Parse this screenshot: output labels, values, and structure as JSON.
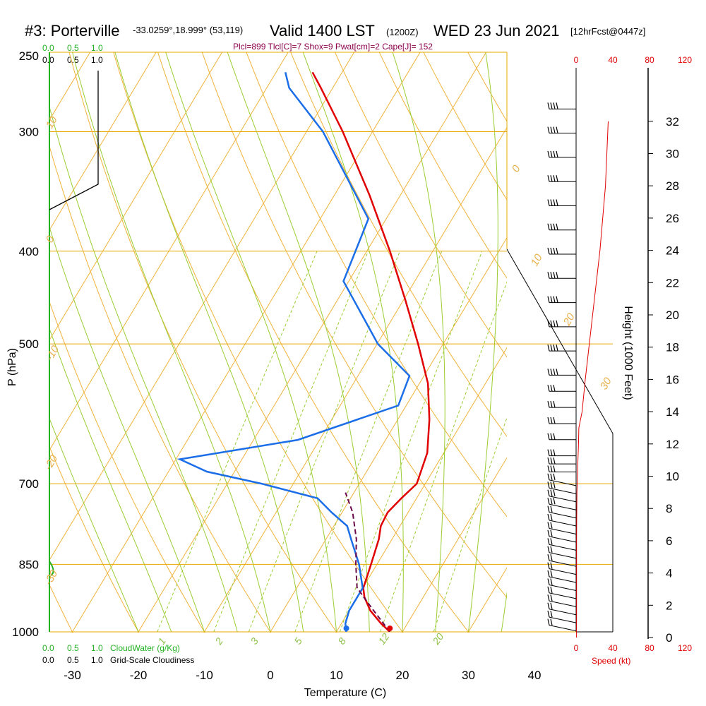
{
  "header": {
    "station": "#3: Porterville",
    "coords": "-33.0259°,18.999° (53,119)",
    "valid_prefix": "Valid 1400 LST",
    "valid_utc": "(1200Z)",
    "valid_date": "WED 23 Jun 2021",
    "forecast": "[12hrFcst@0447z]"
  },
  "params_line": "Plcl=899 Tlcl[C]=7 Shox=9 Pwat[cm]=2 Cape[J]= 152",
  "top_scales": {
    "green": [
      "0.0",
      "0.5",
      "1.0"
    ],
    "black": [
      "0.0",
      "0.5",
      "1.0"
    ]
  },
  "bottom_scales": {
    "cloud_ticks": [
      "0.0",
      "0.5",
      "1.0"
    ],
    "cloud_label": "CloudWater (g/Kg)",
    "grid_ticks": [
      "0.0",
      "0.5",
      "1.0"
    ],
    "grid_label": "Grid-Scale Cloudiness"
  },
  "speed_axis": {
    "top_ticks": [
      "0",
      "40",
      "80",
      "120"
    ],
    "bottom_ticks": [
      "0",
      "40",
      "80",
      "120"
    ],
    "label": "Speed (kt)"
  },
  "chart_data": {
    "type": "line",
    "title": "#3: Porterville -33.0259°,18.999° (53,119) Valid 1400 LST (1200Z) WED 23 Jun 2021 [12hrFcst@0447z]",
    "xlabel": "Temperature (C)",
    "ylabel": "P (hPa)",
    "y2label": "Height (1000 Feet)",
    "x_ticks": [
      "-30",
      "-20",
      "-10",
      "0",
      "10",
      "20",
      "30",
      "40"
    ],
    "y_ticks": [
      "250",
      "300",
      "400",
      "500",
      "700",
      "850",
      "1000"
    ],
    "y2_ticks": [
      "0",
      "2",
      "4",
      "6",
      "8",
      "10",
      "12",
      "14",
      "16",
      "18",
      "20",
      "22",
      "24",
      "26",
      "28",
      "30",
      "32"
    ],
    "xlim": [
      -35,
      36
    ],
    "ylim": [
      1000,
      250
    ],
    "y_scale": "log",
    "skew_degC_per_decade_lnp": 33.8,
    "isotherm_labels": [
      "10",
      "0",
      "-10",
      "-20",
      "-30",
      "0",
      "10",
      "20",
      "30"
    ],
    "mixing_ratio_labels": [
      "1",
      "2",
      "3",
      "5",
      "8",
      "12",
      "20"
    ],
    "series": [
      {
        "role": "temperature",
        "color": "#e00000",
        "points": [
          [
            1000,
            18.1
          ],
          [
            980,
            16.0
          ],
          [
            950,
            13.2
          ],
          [
            920,
            11.1
          ],
          [
            900,
            10.1
          ],
          [
            850,
            9.1
          ],
          [
            800,
            8.0
          ],
          [
            775,
            7.1
          ],
          [
            750,
            6.9
          ],
          [
            725,
            7.7
          ],
          [
            700,
            8.7
          ],
          [
            650,
            7.5
          ],
          [
            600,
            4.8
          ],
          [
            550,
            1.3
          ],
          [
            500,
            -3.8
          ],
          [
            450,
            -9.7
          ],
          [
            400,
            -16.5
          ],
          [
            350,
            -24.6
          ],
          [
            300,
            -34.5
          ],
          [
            270,
            -41.8
          ],
          [
            260,
            -44.5
          ]
        ]
      },
      {
        "role": "dewpoint",
        "color": "#1c6ee8",
        "points": [
          [
            1000,
            11.5
          ],
          [
            980,
            10.6
          ],
          [
            950,
            10.0
          ],
          [
            900,
            10.0
          ],
          [
            850,
            7.3
          ],
          [
            800,
            3.8
          ],
          [
            775,
            2.0
          ],
          [
            750,
            -1.6
          ],
          [
            725,
            -5.0
          ],
          [
            700,
            -14.8
          ],
          [
            680,
            -24.2
          ],
          [
            660,
            -29.4
          ],
          [
            630,
            -13.3
          ],
          [
            580,
            -1.2
          ],
          [
            540,
            -2.2
          ],
          [
            500,
            -9.9
          ],
          [
            430,
            -20.8
          ],
          [
            370,
            -22.7
          ],
          [
            300,
            -37.5
          ],
          [
            270,
            -46.6
          ],
          [
            260,
            -48.6
          ]
        ]
      },
      {
        "role": "parcel",
        "color": "#6b0a4a",
        "dashed": true,
        "points": [
          [
            1000,
            18.1
          ],
          [
            950,
            13.7
          ],
          [
            920,
            11.0
          ],
          [
            899,
            9.1
          ],
          [
            850,
            6.8
          ],
          [
            800,
            4.6
          ],
          [
            750,
            1.6
          ],
          [
            715,
            -1.3
          ]
        ]
      }
    ],
    "height_profile_ft1000": [
      [
        0,
        0.5
      ],
      [
        2,
        0.55
      ],
      [
        4,
        0.55
      ],
      [
        6,
        0.55
      ],
      [
        7,
        0.6
      ],
      [
        8,
        0.8
      ],
      [
        9,
        0.95
      ],
      [
        10,
        1.45
      ],
      [
        11,
        2.0
      ],
      [
        12,
        2.6
      ],
      [
        13,
        3.0
      ],
      [
        14,
        6.5
      ],
      [
        16,
        10.0
      ],
      [
        20,
        18.0
      ],
      [
        24,
        26.0
      ],
      [
        28,
        32.0
      ],
      [
        32,
        35.0
      ]
    ],
    "wind_speed_kt": [
      [
        0,
        12
      ],
      [
        4,
        14
      ],
      [
        8,
        16
      ],
      [
        10,
        20
      ],
      [
        12,
        28
      ],
      [
        14,
        30
      ],
      [
        16,
        35
      ],
      [
        20,
        45
      ],
      [
        24,
        55
      ],
      [
        28,
        65
      ],
      [
        32,
        75
      ]
    ],
    "wind_barb_heights_ft1000": [
      0.5,
      1,
      1.5,
      2,
      2.5,
      3,
      3.5,
      4,
      4.5,
      5,
      5.5,
      6,
      6.5,
      7,
      7.5,
      8,
      8.5,
      9,
      9.5,
      10,
      10.5,
      11,
      12,
      13,
      14,
      15,
      16,
      17.5,
      19,
      20.5,
      22,
      23.5,
      25,
      26.5,
      28,
      29.5,
      31,
      32.5
    ]
  }
}
